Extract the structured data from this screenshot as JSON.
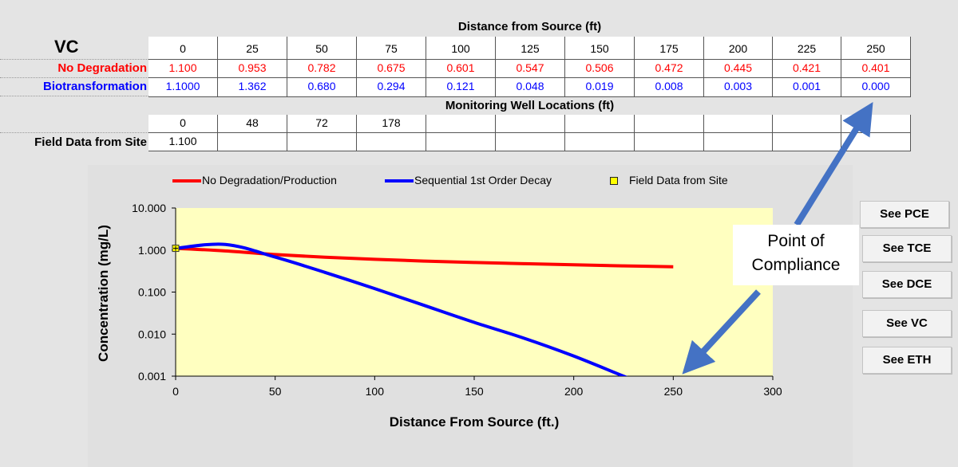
{
  "table": {
    "compound": "VC",
    "distance_header": "Distance from Source (ft)",
    "distances": [
      "0",
      "25",
      "50",
      "75",
      "100",
      "125",
      "150",
      "175",
      "200",
      "225",
      "250"
    ],
    "rows": [
      {
        "label": "No Degradation",
        "color": "#ff0000",
        "values": [
          "1.100",
          "0.953",
          "0.782",
          "0.675",
          "0.601",
          "0.547",
          "0.506",
          "0.472",
          "0.445",
          "0.421",
          "0.401"
        ]
      },
      {
        "label": "Biotransformation",
        "color": "#0000ff",
        "values": [
          "1.1000",
          "1.362",
          "0.680",
          "0.294",
          "0.121",
          "0.048",
          "0.019",
          "0.008",
          "0.003",
          "0.001",
          "0.000"
        ]
      }
    ],
    "monitoring_header": "Monitoring Well Locations (ft)",
    "wells": [
      "0",
      "48",
      "72",
      "178",
      "",
      "",
      "",
      "",
      "",
      "",
      ""
    ],
    "field_label": "Field Data from Site",
    "field_values": [
      "1.100",
      "",
      "",
      "",
      "",
      "",
      "",
      "",
      "",
      "",
      ""
    ]
  },
  "buttons": [
    "See PCE",
    "See TCE",
    "See DCE",
    "See VC",
    "See ETH"
  ],
  "annotation": {
    "line1": "Point of",
    "line2": "Compliance",
    "arrow_color": "#4472c4"
  },
  "chart_data": {
    "type": "line",
    "x": [
      0,
      25,
      50,
      75,
      100,
      125,
      150,
      175,
      200,
      225,
      250
    ],
    "series": [
      {
        "name": "No Degradation/Production",
        "color": "#ff0000",
        "values": [
          1.1,
          0.953,
          0.782,
          0.675,
          0.601,
          0.547,
          0.506,
          0.472,
          0.445,
          0.421,
          0.401
        ]
      },
      {
        "name": "Sequential 1st Order Decay",
        "color": "#0000ff",
        "values": [
          1.1,
          1.362,
          0.68,
          0.294,
          0.121,
          0.048,
          0.019,
          0.008,
          0.003,
          0.001,
          0.0
        ]
      }
    ],
    "field_series": {
      "name": "Field Data from Site",
      "color": "#ffff00",
      "points": [
        {
          "x": 0,
          "y": 1.1
        }
      ]
    },
    "xlabel": "Distance From Source (ft.)",
    "ylabel": "Concentration (mg/L)",
    "xlim": [
      0,
      300
    ],
    "ylim": [
      0.001,
      10
    ],
    "yscale": "log",
    "xticks": [
      "0",
      "50",
      "100",
      "150",
      "200",
      "250",
      "300"
    ],
    "yticks": [
      "10.000",
      "1.000",
      "0.100",
      "0.010",
      "0.001"
    ],
    "plot_background": "#ffffc0",
    "legend_position": "top"
  }
}
